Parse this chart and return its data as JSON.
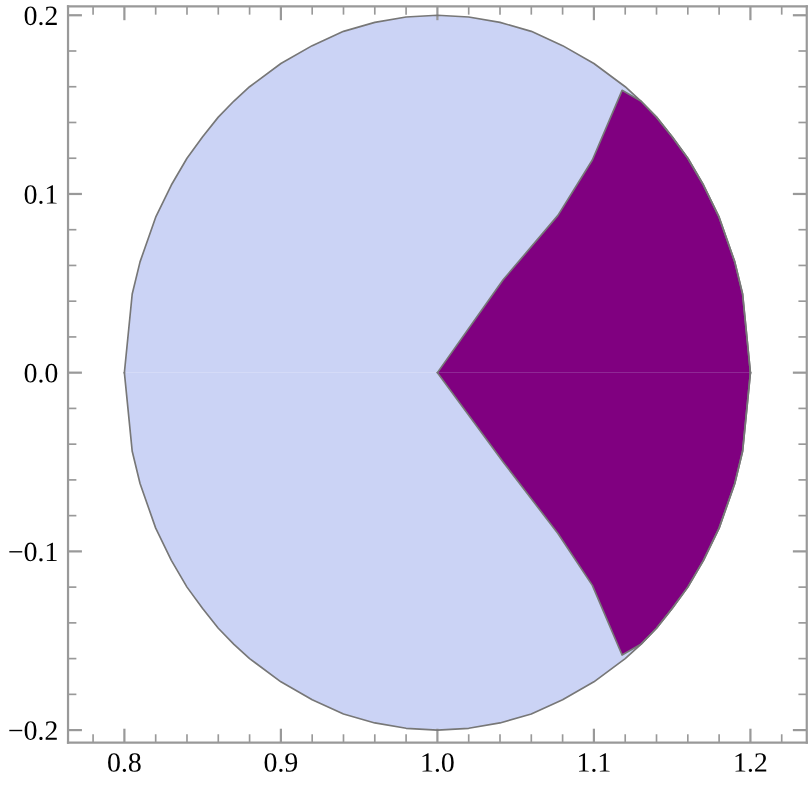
{
  "chart_data": {
    "type": "area",
    "xlim": [
      0.764,
      1.236
    ],
    "ylim": [
      -0.207,
      0.205
    ],
    "xticks": [
      0.8,
      0.9,
      {
        "value": 1.0,
        "label": "1.0"
      },
      1.1,
      1.2
    ],
    "yticks": [
      {
        "value": -0.2,
        "label": "−0.2"
      },
      {
        "value": -0.1,
        "label": "−0.1"
      },
      {
        "value": 0.0,
        "label": "0.0"
      },
      0.1,
      0.2
    ],
    "grid": false,
    "series": [
      {
        "color": "#cbd3f5",
        "x": [
          0.8,
          0.805,
          0.81,
          0.82,
          0.83,
          0.84,
          0.85,
          0.86,
          0.87,
          0.88,
          0.9,
          0.92,
          0.94,
          0.96,
          0.98,
          1.0,
          1.02,
          1.04,
          1.06,
          1.08,
          1.1,
          1.12,
          1.13,
          1.14,
          1.15,
          1.16,
          1.17,
          1.18,
          1.19,
          1.195,
          1.2
        ],
        "values": [
          0,
          0.044,
          0.062,
          0.087,
          0.105,
          0.12,
          0.132,
          0.143,
          0.152,
          0.16,
          0.173,
          0.183,
          0.191,
          0.196,
          0.199,
          0.2,
          0.199,
          0.196,
          0.191,
          0.183,
          0.173,
          0.16,
          0.152,
          0.143,
          0.132,
          0.12,
          0.105,
          0.087,
          0.062,
          0.044,
          0
        ]
      },
      {
        "color": "#cbd3f5",
        "x": [
          0.8,
          0.805,
          0.81,
          0.82,
          0.83,
          0.84,
          0.85,
          0.86,
          0.87,
          0.88,
          0.9,
          0.92,
          0.94,
          0.96,
          0.98,
          1.0,
          1.02,
          1.04,
          1.06,
          1.08,
          1.1,
          1.12,
          1.13,
          1.14,
          1.15,
          1.16,
          1.17,
          1.18,
          1.19,
          1.195,
          1.2
        ],
        "values": [
          0,
          -0.044,
          -0.062,
          -0.087,
          -0.105,
          -0.12,
          -0.132,
          -0.143,
          -0.152,
          -0.16,
          -0.173,
          -0.183,
          -0.191,
          -0.196,
          -0.199,
          -0.2,
          -0.199,
          -0.196,
          -0.191,
          -0.183,
          -0.173,
          -0.16,
          -0.152,
          -0.143,
          -0.132,
          -0.12,
          -0.105,
          -0.087,
          -0.062,
          -0.044,
          0
        ]
      },
      {
        "color": "#800080",
        "x": [
          1.0,
          1.042,
          1.077,
          1.099,
          1.118,
          1.13,
          1.14,
          1.15,
          1.16,
          1.17,
          1.18,
          1.19,
          1.195,
          1.2
        ],
        "values": [
          0,
          0.052,
          0.088,
          0.119,
          0.158,
          0.152,
          0.143,
          0.132,
          0.12,
          0.105,
          0.087,
          0.062,
          0.044,
          0
        ]
      },
      {
        "color": "#800080",
        "x": [
          1.0,
          1.042,
          1.077,
          1.099,
          1.118,
          1.13,
          1.14,
          1.15,
          1.16,
          1.17,
          1.18,
          1.19,
          1.195,
          1.2
        ],
        "values": [
          0,
          -0.05,
          -0.09,
          -0.119,
          -0.158,
          -0.152,
          -0.143,
          -0.132,
          -0.12,
          -0.105,
          -0.087,
          -0.062,
          -0.044,
          0
        ]
      }
    ]
  }
}
